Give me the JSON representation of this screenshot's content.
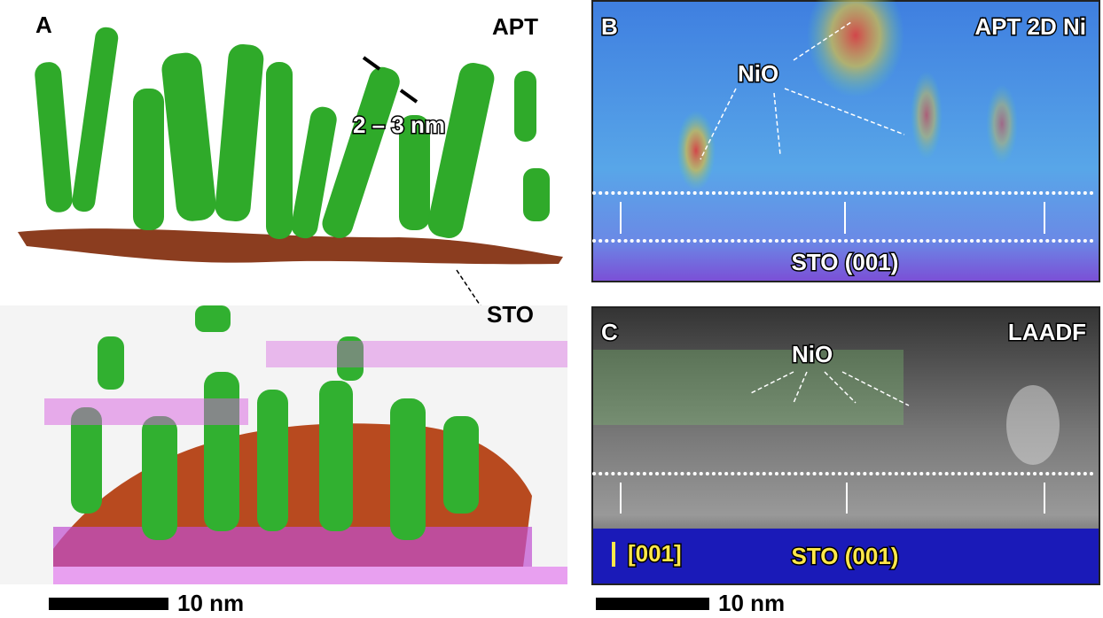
{
  "panels": [
    {
      "label": "A",
      "title": "APT",
      "annotations": [
        "2 – 3 nm",
        "STO"
      ],
      "scale_bar": "10 nm"
    },
    {
      "label": "B",
      "title": "APT 2D Ni",
      "annotations": [
        "NiO",
        "STO (001)"
      ]
    },
    {
      "label": "C",
      "title": "LAADF",
      "annotations": [
        "NiO",
        "[001]",
        "STO (001)"
      ],
      "scale_bar": "10 nm"
    }
  ]
}
